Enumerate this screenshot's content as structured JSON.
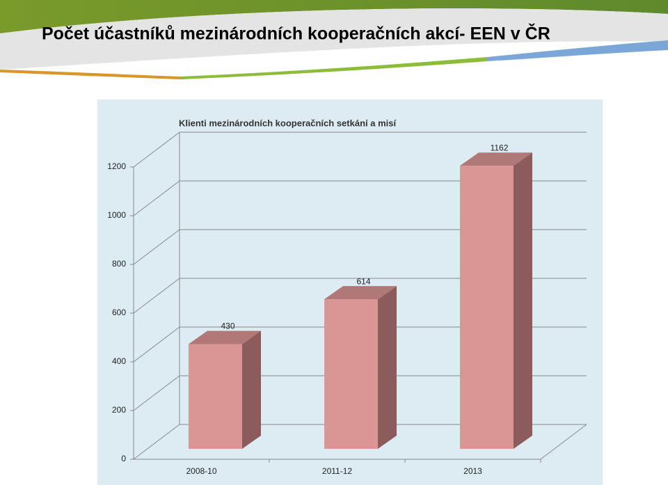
{
  "slide": {
    "title": "Počet účastníků mezinárodních kooperačních akcí- EEN v ČR"
  },
  "chart_data": {
    "type": "bar3d",
    "title": "Klienti mezinárodních kooperačních setkání a misí",
    "categories": [
      "2008-10",
      "2011-12",
      "2013"
    ],
    "values": [
      430,
      614,
      1162
    ],
    "color": "#d99694",
    "top_color": "#b07876",
    "side_color": "#8c5b5b",
    "ylim": [
      0,
      1200
    ],
    "yticks": [
      0,
      200,
      400,
      600,
      800,
      1000,
      1200
    ],
    "grid": true
  }
}
